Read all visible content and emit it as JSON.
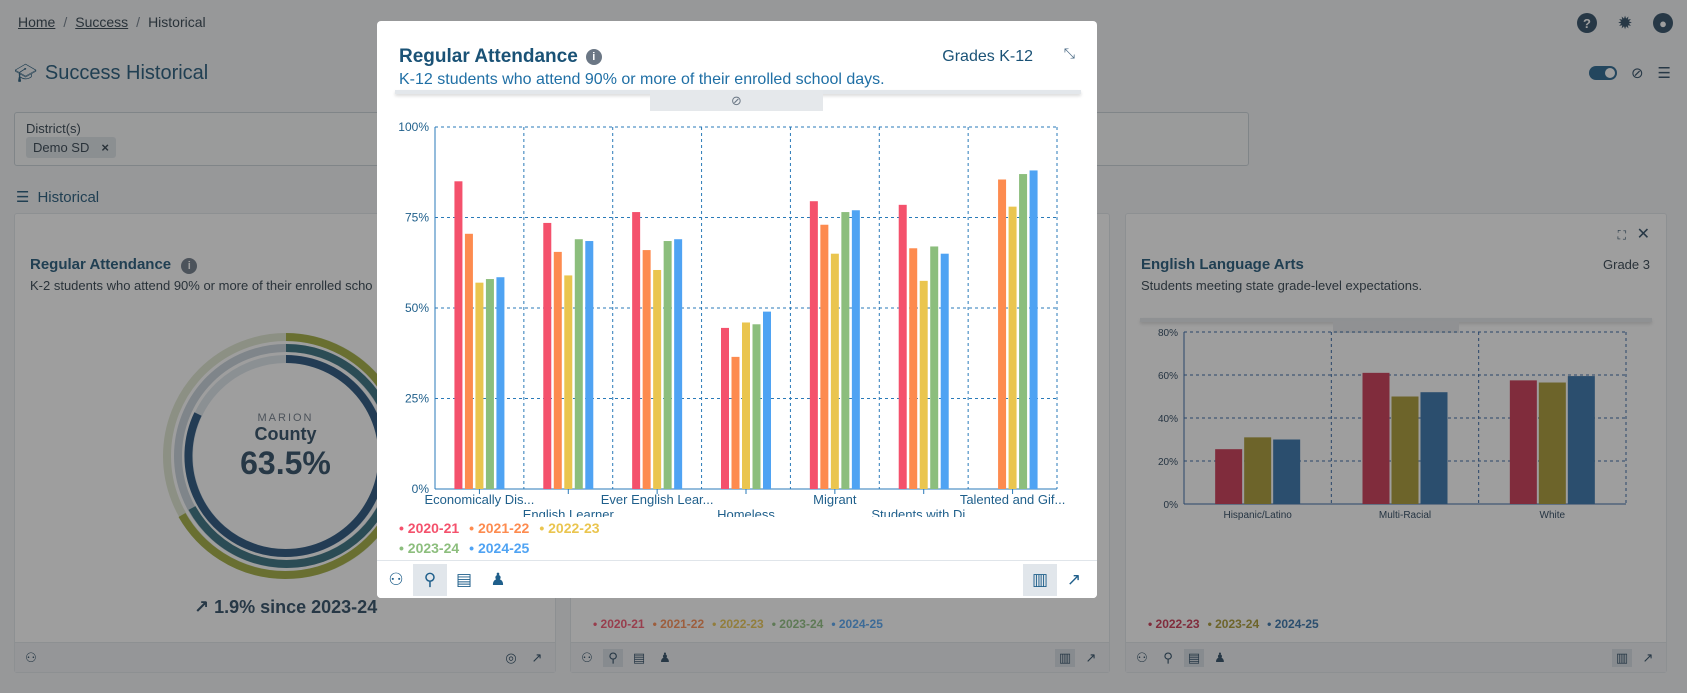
{
  "breadcrumb": {
    "home": "Home",
    "success": "Success",
    "current": "Historical",
    "sep": "/"
  },
  "page": {
    "title": "Success Historical",
    "filter_label": "District(s)",
    "filter_chip": "Demo SD",
    "chip_remove": "×",
    "section_label": "Historical"
  },
  "left_card": {
    "title": "Regular Attendance",
    "subtitle": "K-2 students who attend 90% or more of their enrolled scho",
    "donut_name": "MARION",
    "donut_county": "County",
    "donut_value": "63.5%",
    "since": "↗ 1.9% since 2023-24"
  },
  "right_card": {
    "title": "English Language Arts",
    "subtitle": "Students meeting state grade-level expectations.",
    "grade": "Grade 3",
    "legend": [
      "2022-23",
      "2023-24",
      "2024-25"
    ]
  },
  "middle_card": {
    "legend": [
      "2020-21",
      "2021-22",
      "2022-23",
      "2023-24",
      "2024-25"
    ]
  },
  "modal": {
    "title": "Regular Attendance",
    "grades": "Grades K-12",
    "subtitle": "K-12 students who attend 90% or more of their enrolled school days.",
    "legend": [
      [
        "2020-21",
        "2021-22",
        "2022-23"
      ],
      [
        "2023-24",
        "2024-25"
      ]
    ]
  },
  "colors": {
    "2020-21": "#f4516c",
    "2021-22": "#fd8b4f",
    "2022-23": "#eac54f",
    "2023-24": "#8cbe7d",
    "2024-25": "#4fa3f3",
    "ela_2022-23": "#c9304d",
    "ela_2023-24": "#a6952c",
    "ela_2024-25": "#2f6ea8"
  },
  "chart_data": [
    {
      "type": "bar",
      "title": "Regular Attendance",
      "categories": [
        "Economically Dis...",
        "English Learner",
        "Ever English Lear...",
        "Homeless",
        "Migrant",
        "Students with Di...",
        "Talented and Gif..."
      ],
      "series": [
        {
          "name": "2020-21",
          "values": [
            85,
            73.5,
            76.5,
            44.5,
            79.5,
            78.5,
            null
          ]
        },
        {
          "name": "2021-22",
          "values": [
            70.5,
            65.5,
            66,
            36.5,
            73,
            66.5,
            85.5
          ]
        },
        {
          "name": "2022-23",
          "values": [
            57,
            59,
            60.5,
            46,
            65,
            57.5,
            78
          ]
        },
        {
          "name": "2023-24",
          "values": [
            58,
            69,
            68.5,
            45.5,
            76.5,
            67,
            87
          ]
        },
        {
          "name": "2024-25",
          "values": [
            58.5,
            68.5,
            69,
            49,
            77,
            65,
            88
          ]
        }
      ],
      "yticks": [
        "0%",
        "25%",
        "50%",
        "75%",
        "100%"
      ],
      "ylim": [
        0,
        100
      ],
      "grid": true,
      "legend_position": "bottom-left"
    },
    {
      "type": "bar",
      "title": "English Language Arts",
      "categories": [
        "Hispanic/Latino",
        "Multi-Racial",
        "White"
      ],
      "series": [
        {
          "name": "2022-23",
          "values": [
            25.5,
            61,
            57.5
          ]
        },
        {
          "name": "2023-24",
          "values": [
            31,
            50,
            56.5
          ]
        },
        {
          "name": "2024-25",
          "values": [
            30,
            52,
            59.5
          ]
        }
      ],
      "yticks": [
        "0%",
        "20%",
        "40%",
        "60%",
        "80%"
      ],
      "ylim": [
        0,
        80
      ],
      "grid": true,
      "legend_position": "bottom-left"
    }
  ]
}
